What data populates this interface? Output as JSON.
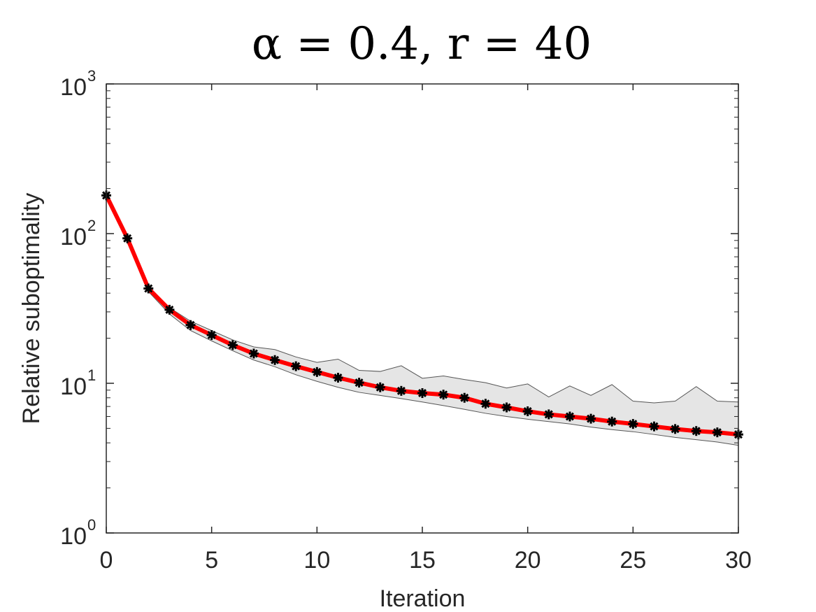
{
  "chart_data": {
    "type": "line",
    "title": "α = 0.4, r = 40",
    "xlabel": "Iteration",
    "ylabel": "Relative suboptimality",
    "xlim": [
      0,
      30
    ],
    "ylim": [
      1,
      1000
    ],
    "yscale": "log",
    "xticks": [
      "0",
      "5",
      "10",
      "15",
      "20",
      "25",
      "30"
    ],
    "yticks": [
      {
        "base": "10",
        "exp": "0"
      },
      {
        "base": "10",
        "exp": "1"
      },
      {
        "base": "10",
        "exp": "2"
      },
      {
        "base": "10",
        "exp": "3"
      }
    ],
    "grid": false,
    "x": [
      0,
      1,
      2,
      3,
      4,
      5,
      6,
      7,
      8,
      9,
      10,
      11,
      12,
      13,
      14,
      15,
      16,
      17,
      18,
      19,
      20,
      21,
      22,
      23,
      24,
      25,
      26,
      27,
      28,
      29,
      30
    ],
    "series": [
      {
        "values": [
          180,
          93,
          43,
          31,
          24.5,
          21,
          18,
          15.8,
          14.3,
          13,
          11.9,
          10.9,
          10.1,
          9.4,
          8.9,
          8.6,
          8.4,
          8.0,
          7.3,
          6.9,
          6.5,
          6.2,
          6.0,
          5.8,
          5.55,
          5.35,
          5.15,
          4.95,
          4.8,
          4.7,
          4.55
        ],
        "color": "#ff0000",
        "marker": "asterisk",
        "marker_color": "#000000"
      }
    ],
    "band": {
      "upper": [
        180,
        93,
        43,
        32,
        26,
        22.5,
        19.5,
        17.5,
        16.8,
        15,
        13.8,
        14.5,
        12.2,
        12.0,
        13.1,
        10.8,
        11.2,
        10.6,
        10.1,
        9.3,
        9.9,
        8.1,
        9.6,
        8.3,
        9.8,
        7.6,
        7.4,
        7.6,
        9.5,
        7.6,
        7.5
      ],
      "lower": [
        180,
        93,
        41,
        29,
        22.5,
        19.2,
        16.5,
        14.3,
        12.9,
        11.4,
        10.3,
        9.4,
        8.7,
        8.3,
        7.9,
        7.5,
        7.1,
        6.7,
        6.3,
        6.0,
        5.75,
        5.55,
        5.35,
        5.1,
        4.9,
        4.75,
        4.55,
        4.35,
        4.2,
        4.05,
        3.85
      ],
      "fill": "#e5e5e5",
      "stroke": "#555555"
    }
  }
}
